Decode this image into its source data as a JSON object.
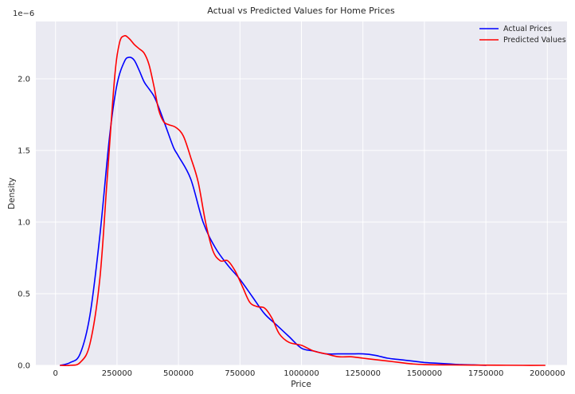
{
  "chart_data": {
    "type": "line",
    "title": "Actual vs Predicted Values for Home Prices",
    "xlabel": "Price",
    "ylabel": "Density",
    "y_scale_label": "1e−6",
    "xlim": [
      -80000,
      2080000
    ],
    "ylim": [
      0,
      2.4
    ],
    "x_ticks": [
      0,
      250000,
      500000,
      750000,
      1000000,
      1250000,
      1500000,
      1750000,
      2000000
    ],
    "x_tick_labels": [
      "0",
      "250000",
      "500000",
      "750000",
      "1000000",
      "1250000",
      "1500000",
      "1750000",
      "2000000"
    ],
    "y_ticks": [
      0,
      0.5,
      1.0,
      1.5,
      2.0
    ],
    "y_tick_labels": [
      "0.0",
      "0.5",
      "1.0",
      "1.5",
      "2.0"
    ],
    "grid": true,
    "legend_position": "top-right",
    "series": [
      {
        "name": "Actual Prices",
        "color": "#0000ff",
        "x": [
          20000,
          60000,
          100000,
          140000,
          180000,
          220000,
          250000,
          280000,
          300000,
          320000,
          340000,
          360000,
          380000,
          400000,
          420000,
          450000,
          480000,
          500000,
          550000,
          600000,
          650000,
          700000,
          750000,
          800000,
          850000,
          900000,
          950000,
          1000000,
          1050000,
          1100000,
          1150000,
          1200000,
          1250000,
          1300000,
          1350000,
          1400000,
          1450000,
          1500000,
          1550000,
          1600000,
          1650000,
          1700000,
          1750000
        ],
        "y": [
          0.0,
          0.02,
          0.08,
          0.35,
          0.9,
          1.6,
          1.96,
          2.12,
          2.15,
          2.13,
          2.06,
          1.98,
          1.93,
          1.88,
          1.8,
          1.66,
          1.52,
          1.46,
          1.3,
          1.0,
          0.82,
          0.7,
          0.6,
          0.48,
          0.36,
          0.28,
          0.2,
          0.12,
          0.1,
          0.08,
          0.08,
          0.08,
          0.08,
          0.07,
          0.05,
          0.04,
          0.03,
          0.02,
          0.015,
          0.01,
          0.005,
          0.003,
          0.0
        ]
      },
      {
        "name": "Predicted Values",
        "color": "#ff0000",
        "x": [
          20000,
          60000,
          100000,
          140000,
          180000,
          210000,
          240000,
          260000,
          280000,
          300000,
          320000,
          340000,
          360000,
          380000,
          400000,
          420000,
          440000,
          460000,
          490000,
          520000,
          550000,
          580000,
          610000,
          640000,
          670000,
          700000,
          730000,
          760000,
          790000,
          820000,
          850000,
          880000,
          910000,
          950000,
          1000000,
          1050000,
          1100000,
          1150000,
          1200000,
          1250000,
          1300000,
          1350000,
          1400000,
          1450000,
          1500000,
          1600000,
          1700000,
          1800000,
          1900000,
          1990000
        ],
        "y": [
          0.0,
          0.0,
          0.02,
          0.15,
          0.6,
          1.3,
          2.0,
          2.25,
          2.3,
          2.28,
          2.24,
          2.21,
          2.18,
          2.1,
          1.95,
          1.78,
          1.7,
          1.68,
          1.66,
          1.6,
          1.45,
          1.28,
          1.0,
          0.8,
          0.73,
          0.73,
          0.66,
          0.55,
          0.44,
          0.41,
          0.4,
          0.33,
          0.22,
          0.16,
          0.14,
          0.1,
          0.08,
          0.06,
          0.06,
          0.05,
          0.04,
          0.03,
          0.02,
          0.01,
          0.005,
          0.003,
          0.002,
          0.001,
          0.0,
          0.0
        ]
      }
    ]
  }
}
